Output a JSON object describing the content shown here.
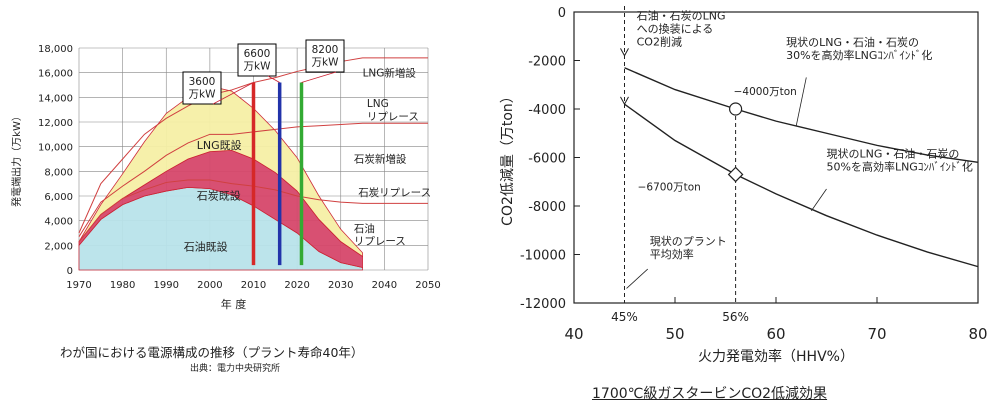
{
  "chart_data": [
    {
      "type": "area",
      "xlabel": "年 度",
      "ylabel": "発電端出力（万kW）",
      "xlim": [
        1970,
        2050
      ],
      "ylim": [
        0,
        18000
      ],
      "x_ticks": [
        "1970",
        "1980",
        "1990",
        "2000",
        "2010",
        "2020",
        "2030",
        "2040",
        "2050"
      ],
      "y_ticks": [
        "0",
        "2,000",
        "4,000",
        "6,000",
        "8,000",
        "10,000",
        "12,000",
        "14,000",
        "16,000",
        "18,000"
      ],
      "grid": true,
      "x": [
        1970,
        1975,
        1980,
        1985,
        1990,
        1995,
        2000,
        2005,
        2010,
        2015,
        2020,
        2025,
        2030,
        2035
      ],
      "series": [
        {
          "name": "石油既設",
          "values": [
            2000,
            4100,
            5300,
            6000,
            6400,
            6700,
            6600,
            6100,
            5200,
            4100,
            3000,
            1500,
            600,
            200
          ]
        },
        {
          "name": "石炭既設",
          "values": [
            300,
            400,
            500,
            900,
            1600,
            2300,
            3000,
            3600,
            3800,
            3800,
            3400,
            2600,
            1700,
            900
          ]
        },
        {
          "name": "LNG既設",
          "values": [
            0,
            800,
            2000,
            3500,
            4700,
            5000,
            5300,
            4800,
            4100,
            3400,
            2700,
            1900,
            1000,
            300
          ]
        }
      ],
      "upper_lines": {
        "values_total": [
          3000,
          7000,
          9000,
          11000,
          12300,
          13300,
          14200,
          14600,
          15200,
          15600,
          16100,
          16500,
          16900,
          17200
        ],
        "values_mid": [
          2700,
          5500,
          6800,
          8000,
          9300,
          10300,
          11000,
          11000,
          11200,
          11400,
          11600,
          11700,
          11800,
          11900
        ],
        "values_low": [
          2300,
          4500,
          5800,
          6500,
          7100,
          7300,
          7300,
          7000,
          6800,
          6500,
          6000,
          5700,
          5500,
          5400
        ]
      },
      "region_labels": [
        "LNG新増設",
        "LNG\nリプレース",
        "石炭新増設",
        "石炭リプレース",
        "石油\nリプレース"
      ],
      "markers": [
        {
          "label": "3600\n万kW",
          "year": 2010,
          "color": "#d62828"
        },
        {
          "label": "6600\n万kW",
          "year": 2016,
          "color": "#2233aa"
        },
        {
          "label": "8200\n万kW",
          "year": 2021,
          "color": "#33aa33"
        }
      ],
      "caption": "わが国における電源構成の推移（プラント寿命40年）",
      "source": "出典：電力中央研究所"
    },
    {
      "type": "line",
      "xlabel": "火力発電効率（HHV%）",
      "ylabel": "CO2低減量（万ton）",
      "xlim": [
        40,
        80
      ],
      "ylim": [
        -12000,
        0
      ],
      "x_ticks": [
        "40",
        "50",
        "60",
        "70",
        "80"
      ],
      "y_ticks": [
        "0",
        "-2000",
        "-4000",
        "-6000",
        "-8000",
        "-10000",
        "-12000"
      ],
      "x_marks": [
        "45%",
        "56%"
      ],
      "series": [
        {
          "name": "現状のLNG・石油・石炭の\n30%を高効率LNGｺﾝﾊﾞｲﾝﾄﾞ化",
          "x": [
            45,
            50,
            56,
            60,
            65,
            70,
            75,
            80
          ],
          "values": [
            -2300,
            -3200,
            -4000,
            -4500,
            -5000,
            -5500,
            -5900,
            -6200
          ]
        },
        {
          "name": "現状のLNG・石油・石炭の\n50%を高効率LNGｺﾝﾊﾞｲﾝﾄﾞ化",
          "x": [
            45,
            50,
            56,
            60,
            65,
            70,
            75,
            80
          ],
          "values": [
            -3800,
            -5300,
            -6700,
            -7500,
            -8400,
            -9200,
            -9900,
            -10500
          ]
        }
      ],
      "points": [
        {
          "x": 56,
          "y": -4000,
          "label": "−4000万ton",
          "shape": "circle"
        },
        {
          "x": 56,
          "y": -6700,
          "label": "−6700万ton",
          "shape": "diamond"
        }
      ],
      "annotations": {
        "lng_conversion": "石油・石炭のLNG\nへの換装による\nCO2削減",
        "plant_avg": "現状のプラント\n平均効率"
      },
      "caption": "1700℃級ガスタービンCO2低減効果"
    }
  ]
}
